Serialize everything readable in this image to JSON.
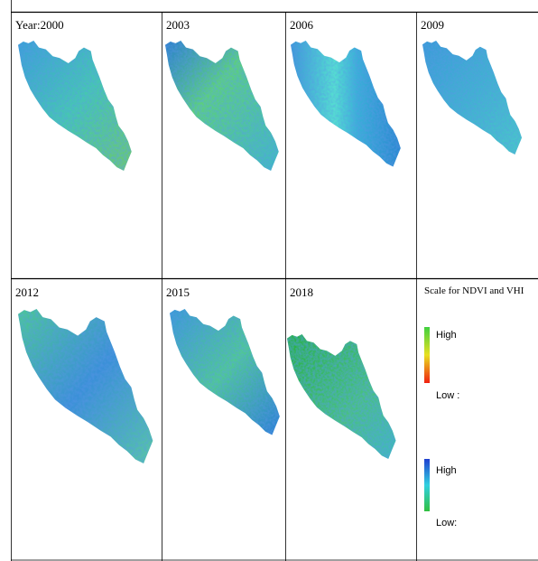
{
  "panels": [
    {
      "label": "Year:2000"
    },
    {
      "label": "2003"
    },
    {
      "label": "2006"
    },
    {
      "label": "2009"
    },
    {
      "label": "2012"
    },
    {
      "label": "2015"
    },
    {
      "label": "2018"
    }
  ],
  "legend": {
    "title": "Scale for NDVI and VHI",
    "scales": [
      {
        "high": "High",
        "low": "Low :"
      },
      {
        "high": "High",
        "low": "Low:"
      }
    ]
  }
}
